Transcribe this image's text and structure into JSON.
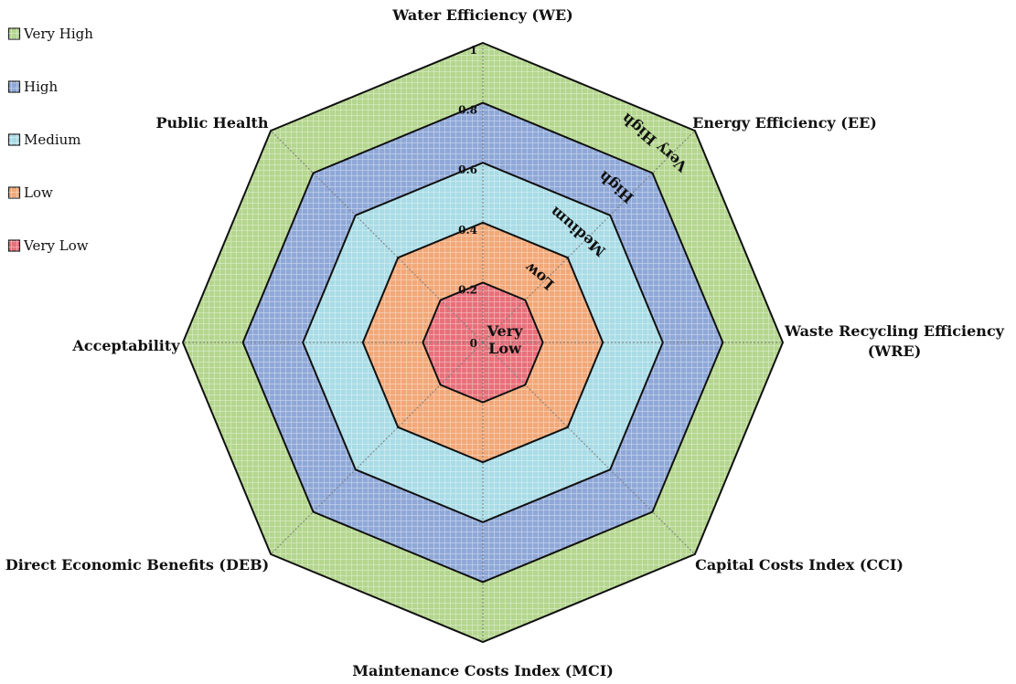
{
  "chart_data": {
    "type": "radar",
    "axes": [
      "Water Efficiency (WE)",
      "Energy Efficiency (EE)",
      "Waste Recycling Efficiency\n(WRE)",
      "Capital Costs Index (CCI)",
      "Maintenance Costs Index (MCI)",
      "Direct Economic Benefits (DEB)",
      "Acceptability",
      "Public Health"
    ],
    "ticks": [
      "0",
      "0.2",
      "0.4",
      "0.6",
      "0.8",
      "1"
    ],
    "range": [
      0,
      1
    ],
    "bands": [
      {
        "name": "Very Low",
        "from": 0.0,
        "to": 0.2,
        "color": "#e8707a",
        "label": "Very\nLow"
      },
      {
        "name": "Low",
        "from": 0.2,
        "to": 0.4,
        "color": "#f2a878",
        "label": "Low"
      },
      {
        "name": "Medium",
        "from": 0.4,
        "to": 0.6,
        "color": "#a9dce6",
        "label": "Medium"
      },
      {
        "name": "High",
        "from": 0.6,
        "to": 0.8,
        "color": "#8fa8d8",
        "label": "High"
      },
      {
        "name": "Very High",
        "from": 0.8,
        "to": 1.0,
        "color": "#b4d68e",
        "label": "Very High"
      }
    ],
    "legend": {
      "position": "top-left",
      "entries": [
        {
          "label": "Very High",
          "color": "#b4d68e"
        },
        {
          "label": "High",
          "color": "#8fa8d8"
        },
        {
          "label": "Medium",
          "color": "#a9dce6"
        },
        {
          "label": "Low",
          "color": "#f2a878"
        },
        {
          "label": "Very Low",
          "color": "#e8707a"
        }
      ]
    },
    "grid": true
  }
}
